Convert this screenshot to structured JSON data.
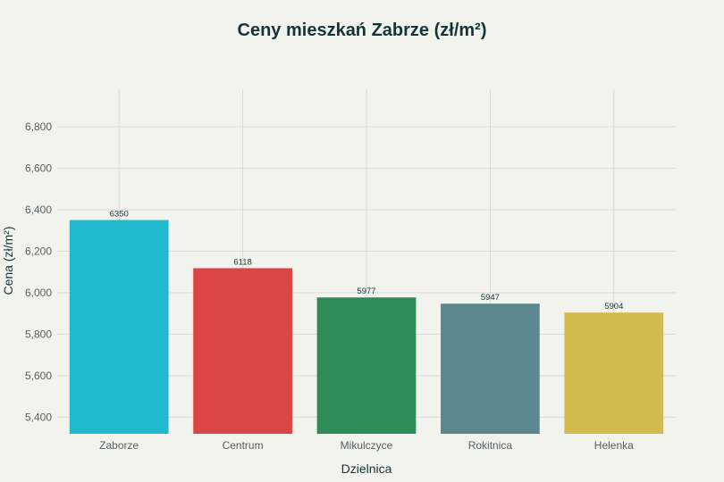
{
  "chart_data": {
    "type": "bar",
    "title": "Ceny mieszkań Zabrze (zł/m²)",
    "xlabel": "Dzielnica",
    "ylabel": "Cena (zł/m²)",
    "categories": [
      "Zaborze",
      "Centrum",
      "Mikulczyce",
      "Rokitnica",
      "Helenka"
    ],
    "values": [
      6350,
      6118,
      5977,
      5947,
      5904
    ],
    "data_labels": [
      "6350",
      "6118",
      "5977",
      "5947",
      "5904"
    ],
    "colors": [
      "#1fb8cd",
      "#db4545",
      "#2e8b57",
      "#5d878f",
      "#d2ba4c"
    ],
    "ylim": [
      5320,
      6980
    ],
    "yticks": [
      5400,
      5600,
      5800,
      6000,
      6200,
      6400,
      6600,
      6800
    ],
    "ytick_labels": [
      "5,400",
      "5,600",
      "5,800",
      "6,000",
      "6,200",
      "6,400",
      "6,600",
      "6,800"
    ],
    "grid": true,
    "legend": false
  }
}
